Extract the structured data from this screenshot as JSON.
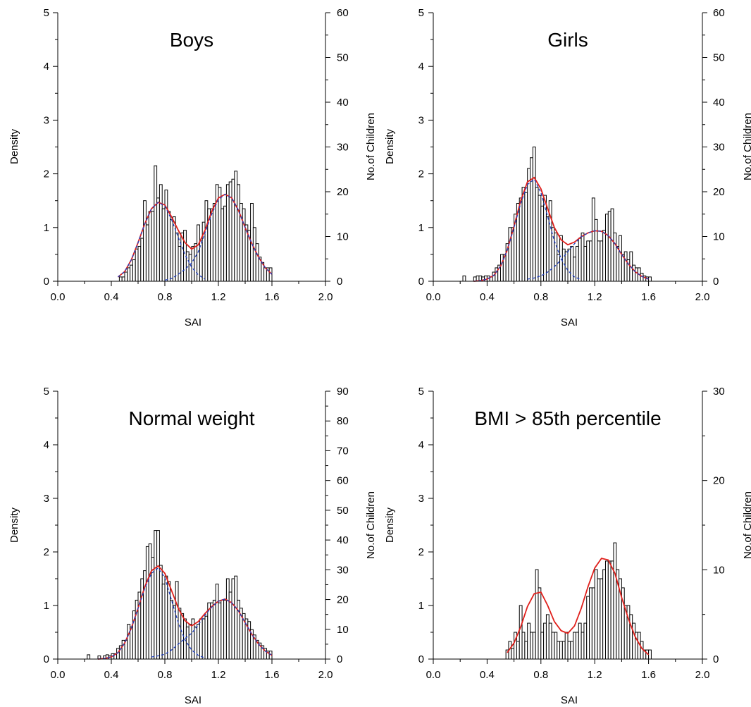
{
  "figure": {
    "xlabel": "SAI",
    "left_ylabel": "Density",
    "right_ylabel": "No.of Children"
  },
  "chart_data": [
    {
      "type": "bar",
      "title": "Boys",
      "xlabel": "SAI",
      "ylabel": "Density",
      "y2label": "No.of Children",
      "xlim": [
        0,
        2
      ],
      "xticks": [
        "0.0",
        "0.4",
        "0.8",
        "1.2",
        "1.6",
        "2.0"
      ],
      "ylim": [
        0,
        5
      ],
      "yticks": [
        "0",
        "1",
        "2",
        "3",
        "4",
        "5"
      ],
      "y2lim": [
        0,
        60
      ],
      "y2ticks": [
        "0",
        "10",
        "20",
        "30",
        "40",
        "50",
        "60"
      ],
      "bin_width": 0.02,
      "bins_x": [
        0.47,
        0.49,
        0.51,
        0.53,
        0.55,
        0.57,
        0.59,
        0.61,
        0.63,
        0.65,
        0.67,
        0.69,
        0.71,
        0.73,
        0.75,
        0.77,
        0.79,
        0.81,
        0.83,
        0.85,
        0.87,
        0.89,
        0.91,
        0.93,
        0.95,
        0.97,
        0.99,
        1.01,
        1.03,
        1.05,
        1.07,
        1.09,
        1.11,
        1.13,
        1.15,
        1.17,
        1.19,
        1.21,
        1.23,
        1.25,
        1.27,
        1.29,
        1.31,
        1.33,
        1.35,
        1.37,
        1.39,
        1.41,
        1.43,
        1.45,
        1.47,
        1.49,
        1.51,
        1.53,
        1.55,
        1.57,
        1.59
      ],
      "density": [
        0.08,
        0.08,
        0.17,
        0.25,
        0.3,
        0.4,
        0.6,
        0.65,
        0.8,
        1.5,
        1.05,
        1.3,
        1.3,
        2.15,
        1.55,
        1.8,
        1.35,
        1.7,
        1.3,
        1.15,
        1.2,
        0.9,
        0.65,
        0.9,
        0.95,
        0.55,
        0.5,
        0.65,
        0.7,
        1.05,
        0.75,
        1.1,
        1.5,
        1.35,
        1.35,
        1.45,
        1.8,
        1.75,
        1.35,
        1.4,
        1.8,
        1.85,
        1.9,
        2.05,
        1.8,
        1.45,
        1.35,
        1.05,
        0.95,
        1.45,
        1.0,
        0.7,
        0.45,
        0.35,
        0.25,
        0.25,
        0.25
      ],
      "series": [
        {
          "x": [
            0.45,
            0.5,
            0.55,
            0.6,
            0.65,
            0.7,
            0.75,
            0.8,
            0.85,
            0.9,
            0.95,
            1.0,
            1.05,
            1.1,
            1.15,
            1.2,
            1.25,
            1.3,
            1.35,
            1.4,
            1.45,
            1.5,
            1.55,
            1.6
          ],
          "y": [
            0.08,
            0.18,
            0.4,
            0.72,
            1.07,
            1.35,
            1.47,
            1.42,
            1.2,
            0.95,
            0.72,
            0.6,
            0.68,
            0.95,
            1.3,
            1.55,
            1.62,
            1.55,
            1.32,
            1.0,
            0.7,
            0.45,
            0.25,
            0.13
          ],
          "color": "#e0201c"
        },
        {
          "x": [
            0.45,
            0.5,
            0.55,
            0.6,
            0.65,
            0.7,
            0.75,
            0.8,
            0.85,
            0.9,
            0.95,
            1.0,
            1.05,
            1.1
          ],
          "y": [
            0.08,
            0.18,
            0.4,
            0.72,
            1.07,
            1.35,
            1.47,
            1.4,
            1.15,
            0.82,
            0.5,
            0.26,
            0.12,
            0.04
          ],
          "color": "#2040c0",
          "dash": true
        },
        {
          "x": [
            0.8,
            0.85,
            0.9,
            0.95,
            1.0,
            1.05,
            1.1,
            1.15,
            1.2,
            1.25,
            1.3,
            1.35,
            1.4,
            1.45,
            1.5,
            1.55,
            1.6
          ],
          "y": [
            0.02,
            0.05,
            0.13,
            0.22,
            0.34,
            0.55,
            0.9,
            1.25,
            1.52,
            1.62,
            1.55,
            1.32,
            1.0,
            0.7,
            0.45,
            0.25,
            0.13
          ],
          "color": "#2040c0",
          "dash": true
        }
      ]
    },
    {
      "type": "bar",
      "title": "Girls",
      "xlabel": "SAI",
      "ylabel": "Density",
      "y2label": "No.of Children",
      "xlim": [
        0,
        2
      ],
      "xticks": [
        "0.0",
        "0.4",
        "0.8",
        "1.2",
        "1.6",
        "2.0"
      ],
      "ylim": [
        0,
        5
      ],
      "yticks": [
        "0",
        "1",
        "2",
        "3",
        "4",
        "5"
      ],
      "y2lim": [
        0,
        60
      ],
      "y2ticks": [
        "0",
        "10",
        "20",
        "30",
        "40",
        "50",
        "60"
      ],
      "bin_width": 0.02,
      "bins_x": [
        0.23,
        0.31,
        0.33,
        0.35,
        0.37,
        0.39,
        0.41,
        0.43,
        0.45,
        0.47,
        0.49,
        0.51,
        0.53,
        0.55,
        0.57,
        0.59,
        0.61,
        0.63,
        0.65,
        0.67,
        0.69,
        0.71,
        0.73,
        0.75,
        0.77,
        0.79,
        0.81,
        0.83,
        0.85,
        0.87,
        0.89,
        0.91,
        0.93,
        0.95,
        0.97,
        0.99,
        1.01,
        1.03,
        1.05,
        1.07,
        1.09,
        1.11,
        1.13,
        1.15,
        1.17,
        1.19,
        1.21,
        1.23,
        1.25,
        1.27,
        1.29,
        1.31,
        1.33,
        1.35,
        1.37,
        1.39,
        1.41,
        1.43,
        1.45,
        1.47,
        1.49,
        1.51,
        1.53,
        1.55,
        1.57,
        1.59,
        1.61
      ],
      "density": [
        0.1,
        0.08,
        0.1,
        0.1,
        0.08,
        0.1,
        0.1,
        0.08,
        0.17,
        0.25,
        0.3,
        0.5,
        0.5,
        0.7,
        1.0,
        1.0,
        1.25,
        1.45,
        1.55,
        1.75,
        1.65,
        2.1,
        2.3,
        2.5,
        1.75,
        1.6,
        1.4,
        1.6,
        1.2,
        1.5,
        1.0,
        0.9,
        0.5,
        0.85,
        0.6,
        0.55,
        0.6,
        0.65,
        0.45,
        0.65,
        0.8,
        0.9,
        0.65,
        0.75,
        0.75,
        1.55,
        1.15,
        0.75,
        0.75,
        0.95,
        1.25,
        1.3,
        1.35,
        0.9,
        0.65,
        0.85,
        0.5,
        0.55,
        0.4,
        0.55,
        0.3,
        0.25,
        0.25,
        0.15,
        0.1,
        0.08,
        0.08
      ],
      "series": [
        {
          "x": [
            0.3,
            0.35,
            0.4,
            0.45,
            0.5,
            0.55,
            0.6,
            0.65,
            0.7,
            0.75,
            0.8,
            0.85,
            0.9,
            0.95,
            1.0,
            1.05,
            1.1,
            1.15,
            1.2,
            1.25,
            1.3,
            1.35,
            1.4,
            1.45,
            1.5,
            1.55,
            1.6
          ],
          "y": [
            0.0,
            0.01,
            0.04,
            0.11,
            0.28,
            0.58,
            1.02,
            1.5,
            1.85,
            1.93,
            1.72,
            1.35,
            1.0,
            0.77,
            0.68,
            0.73,
            0.83,
            0.9,
            0.94,
            0.93,
            0.85,
            0.7,
            0.5,
            0.32,
            0.18,
            0.09,
            0.04
          ],
          "color": "#e0201c"
        },
        {
          "x": [
            0.3,
            0.35,
            0.4,
            0.45,
            0.5,
            0.55,
            0.6,
            0.65,
            0.7,
            0.75,
            0.8,
            0.85,
            0.9,
            0.95,
            1.0,
            1.05,
            1.1
          ],
          "y": [
            0.0,
            0.01,
            0.04,
            0.11,
            0.28,
            0.58,
            1.0,
            1.45,
            1.8,
            1.9,
            1.65,
            1.2,
            0.75,
            0.42,
            0.2,
            0.08,
            0.03
          ],
          "color": "#2040c0",
          "dash": true
        },
        {
          "x": [
            0.7,
            0.75,
            0.8,
            0.85,
            0.9,
            0.95,
            1.0,
            1.05,
            1.1,
            1.15,
            1.2,
            1.25,
            1.3,
            1.35,
            1.4,
            1.45,
            1.5,
            1.55,
            1.6
          ],
          "y": [
            0.04,
            0.06,
            0.1,
            0.17,
            0.27,
            0.4,
            0.55,
            0.7,
            0.83,
            0.9,
            0.94,
            0.93,
            0.85,
            0.7,
            0.5,
            0.32,
            0.18,
            0.09,
            0.04
          ],
          "color": "#2040c0",
          "dash": true
        }
      ]
    },
    {
      "type": "bar",
      "title": "Normal weight",
      "xlabel": "SAI",
      "ylabel": "Density",
      "y2label": "No.of Children",
      "xlim": [
        0,
        2
      ],
      "xticks": [
        "0.0",
        "0.4",
        "0.8",
        "1.2",
        "1.6",
        "2.0"
      ],
      "ylim": [
        0,
        5
      ],
      "yticks": [
        "0",
        "1",
        "2",
        "3",
        "4",
        "5"
      ],
      "y2lim": [
        0,
        90
      ],
      "y2ticks": [
        "0",
        "10",
        "20",
        "30",
        "40",
        "50",
        "60",
        "70",
        "80",
        "90"
      ],
      "bin_width": 0.02,
      "bins_x": [
        0.23,
        0.31,
        0.35,
        0.37,
        0.39,
        0.41,
        0.43,
        0.45,
        0.47,
        0.49,
        0.51,
        0.53,
        0.55,
        0.57,
        0.59,
        0.61,
        0.63,
        0.65,
        0.67,
        0.69,
        0.71,
        0.73,
        0.75,
        0.77,
        0.79,
        0.81,
        0.83,
        0.85,
        0.87,
        0.89,
        0.91,
        0.93,
        0.95,
        0.97,
        0.99,
        1.01,
        1.03,
        1.05,
        1.07,
        1.09,
        1.11,
        1.13,
        1.15,
        1.17,
        1.19,
        1.21,
        1.23,
        1.25,
        1.27,
        1.29,
        1.31,
        1.33,
        1.35,
        1.37,
        1.39,
        1.41,
        1.43,
        1.45,
        1.47,
        1.49,
        1.51,
        1.53,
        1.55,
        1.57,
        1.59
      ],
      "density": [
        0.08,
        0.06,
        0.06,
        0.08,
        0.06,
        0.1,
        0.1,
        0.2,
        0.25,
        0.35,
        0.35,
        0.65,
        0.6,
        0.9,
        1.1,
        1.25,
        1.5,
        1.65,
        2.1,
        2.15,
        1.9,
        2.4,
        2.4,
        1.75,
        1.4,
        1.55,
        1.45,
        1.1,
        1.0,
        1.45,
        0.95,
        0.85,
        0.75,
        0.6,
        0.65,
        0.75,
        0.6,
        0.65,
        0.75,
        0.75,
        0.8,
        1.05,
        1.05,
        1.1,
        1.4,
        1.05,
        1.1,
        1.1,
        1.5,
        1.25,
        1.5,
        1.55,
        1.1,
        0.95,
        0.85,
        0.75,
        0.7,
        0.55,
        0.45,
        0.35,
        0.3,
        0.25,
        0.2,
        0.15,
        0.15
      ],
      "series": [
        {
          "x": [
            0.3,
            0.35,
            0.4,
            0.45,
            0.5,
            0.55,
            0.6,
            0.65,
            0.7,
            0.75,
            0.8,
            0.85,
            0.9,
            0.95,
            1.0,
            1.05,
            1.1,
            1.15,
            1.2,
            1.25,
            1.3,
            1.35,
            1.4,
            1.45,
            1.5,
            1.55,
            1.6
          ],
          "y": [
            0.0,
            0.01,
            0.04,
            0.12,
            0.3,
            0.58,
            0.95,
            1.35,
            1.65,
            1.74,
            1.6,
            1.28,
            0.95,
            0.72,
            0.62,
            0.7,
            0.85,
            0.98,
            1.08,
            1.12,
            1.05,
            0.9,
            0.68,
            0.46,
            0.28,
            0.15,
            0.07
          ],
          "color": "#e0201c"
        },
        {
          "x": [
            0.3,
            0.35,
            0.4,
            0.45,
            0.5,
            0.55,
            0.6,
            0.65,
            0.7,
            0.75,
            0.8,
            0.85,
            0.9,
            0.95,
            1.0,
            1.05,
            1.1
          ],
          "y": [
            0.0,
            0.01,
            0.04,
            0.12,
            0.3,
            0.58,
            0.95,
            1.32,
            1.6,
            1.7,
            1.52,
            1.1,
            0.68,
            0.36,
            0.17,
            0.07,
            0.02
          ],
          "color": "#2040c0",
          "dash": true
        },
        {
          "x": [
            0.7,
            0.75,
            0.8,
            0.85,
            0.9,
            0.95,
            1.0,
            1.05,
            1.1,
            1.15,
            1.2,
            1.25,
            1.3,
            1.35,
            1.4,
            1.45,
            1.5,
            1.55,
            1.6
          ],
          "y": [
            0.04,
            0.06,
            0.09,
            0.17,
            0.28,
            0.38,
            0.48,
            0.64,
            0.82,
            0.97,
            1.08,
            1.12,
            1.05,
            0.9,
            0.68,
            0.46,
            0.28,
            0.15,
            0.07
          ],
          "color": "#2040c0",
          "dash": true
        }
      ]
    },
    {
      "type": "bar",
      "title": "BMI > 85th percentile",
      "xlabel": "SAI",
      "ylabel": "Density",
      "y2label": "No.of Children",
      "xlim": [
        0,
        2
      ],
      "xticks": [
        "0.0",
        "0.4",
        "0.8",
        "1.2",
        "1.6",
        "2.0"
      ],
      "ylim": [
        0,
        5
      ],
      "yticks": [
        "0",
        "1",
        "2",
        "3",
        "4",
        "5"
      ],
      "y2lim": [
        0,
        30
      ],
      "y2ticks": [
        "0",
        "10",
        "20",
        "30"
      ],
      "bin_width": 0.02,
      "bins_x": [
        0.55,
        0.57,
        0.59,
        0.61,
        0.63,
        0.65,
        0.67,
        0.69,
        0.71,
        0.73,
        0.75,
        0.77,
        0.79,
        0.81,
        0.83,
        0.85,
        0.87,
        0.89,
        0.91,
        0.93,
        0.95,
        0.97,
        0.99,
        1.01,
        1.03,
        1.05,
        1.07,
        1.09,
        1.11,
        1.13,
        1.15,
        1.17,
        1.19,
        1.21,
        1.23,
        1.25,
        1.27,
        1.29,
        1.31,
        1.33,
        1.35,
        1.37,
        1.39,
        1.41,
        1.43,
        1.45,
        1.47,
        1.49,
        1.51,
        1.53,
        1.55,
        1.57,
        1.59,
        1.61
      ],
      "density": [
        0.17,
        0.33,
        0.2,
        0.5,
        0.33,
        1.0,
        0.5,
        0.33,
        0.67,
        0.5,
        0.5,
        1.67,
        1.33,
        0.5,
        0.67,
        0.83,
        0.67,
        0.5,
        0.5,
        0.33,
        0.33,
        0.33,
        0.5,
        0.33,
        0.33,
        0.5,
        0.5,
        0.67,
        0.5,
        0.67,
        1.17,
        1.33,
        1.33,
        1.67,
        1.5,
        1.5,
        1.67,
        1.83,
        1.83,
        1.83,
        2.17,
        1.67,
        1.5,
        1.33,
        1.0,
        1.0,
        0.83,
        0.67,
        0.5,
        0.5,
        0.33,
        0.17,
        0.17,
        0.17
      ],
      "series": [
        {
          "x": [
            0.55,
            0.6,
            0.65,
            0.7,
            0.75,
            0.8,
            0.85,
            0.9,
            0.95,
            1.0,
            1.05,
            1.1,
            1.15,
            1.2,
            1.25,
            1.3,
            1.35,
            1.4,
            1.45,
            1.5,
            1.55,
            1.6
          ],
          "y": [
            0.12,
            0.3,
            0.6,
            0.98,
            1.22,
            1.25,
            1.0,
            0.7,
            0.53,
            0.48,
            0.62,
            0.95,
            1.35,
            1.7,
            1.88,
            1.85,
            1.6,
            1.15,
            0.75,
            0.42,
            0.2,
            0.08
          ],
          "color": "#e0201c"
        }
      ]
    }
  ]
}
